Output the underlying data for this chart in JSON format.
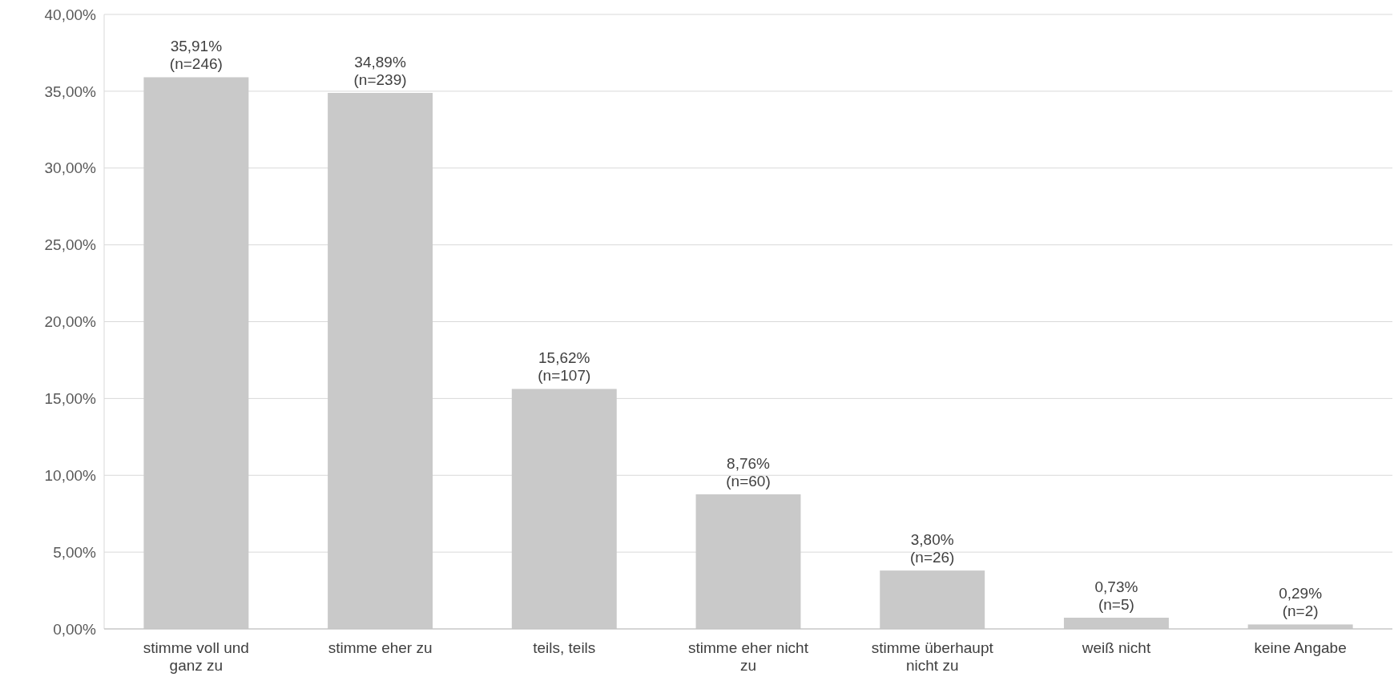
{
  "chart_data": {
    "type": "bar",
    "categories": [
      "stimme voll und ganz zu",
      "stimme eher zu",
      "teils, teils",
      "stimme eher nicht zu",
      "stimme überhaupt nicht zu",
      "weiß nicht",
      "keine Angabe"
    ],
    "values": [
      35.91,
      34.89,
      15.62,
      8.76,
      3.8,
      0.73,
      0.29
    ],
    "value_labels": [
      "35,91%\n(n=246)",
      "34,89%\n(n=239)",
      "15,62%\n(n=107)",
      "8,76%\n(n=60)",
      "3,80%\n(n=26)",
      "0,73%\n(n=5)",
      "0,29%\n(n=2)"
    ],
    "color": "#c9c9c9",
    "ylim": [
      0,
      40
    ],
    "yticks": [
      {
        "value": 0,
        "label": "0,00%"
      },
      {
        "value": 5,
        "label": "5,00%"
      },
      {
        "value": 10,
        "label": "10,00%"
      },
      {
        "value": 15,
        "label": "15,00%"
      },
      {
        "value": 20,
        "label": "20,00%"
      },
      {
        "value": 25,
        "label": "25,00%"
      },
      {
        "value": 30,
        "label": "30,00%"
      },
      {
        "value": 35,
        "label": "35,00%"
      },
      {
        "value": 40,
        "label": "40,00%"
      }
    ],
    "grid": "y"
  }
}
